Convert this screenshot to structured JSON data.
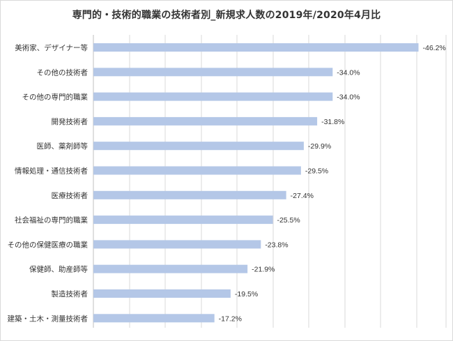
{
  "chart_data": {
    "type": "bar",
    "orientation": "horizontal",
    "title": "専門的・技術的職業の技術者別_新規求人数の2019年/2020年4月比",
    "categories": [
      "美術家、デザイナー等",
      "その他の技術者",
      "その他の専門的職業",
      "開発技術者",
      "医師、薬剤師等",
      "情報処理・通信技術者",
      "医療技術者",
      "社会福祉の専門的職業",
      "その他の保健医療の職業",
      "保健師、助産師等",
      "製造技術者",
      "建築・土木・測量技術者"
    ],
    "values": [
      -46.2,
      -34.0,
      -34.0,
      -31.8,
      -29.9,
      -29.5,
      -27.4,
      -25.5,
      -23.8,
      -21.9,
      -19.5,
      -17.2
    ],
    "data_labels": [
      "-46.2%",
      "-34.0%",
      "-34.0%",
      "-31.8%",
      "-29.9%",
      "-29.5%",
      "-27.4%",
      "-25.5%",
      "-23.8%",
      "-21.9%",
      "-19.5%",
      "-17.2%"
    ],
    "value_unit": "%",
    "xlim": [
      -50,
      0
    ],
    "grid": true,
    "bar_color": "#b4c7e7",
    "legend": false
  }
}
